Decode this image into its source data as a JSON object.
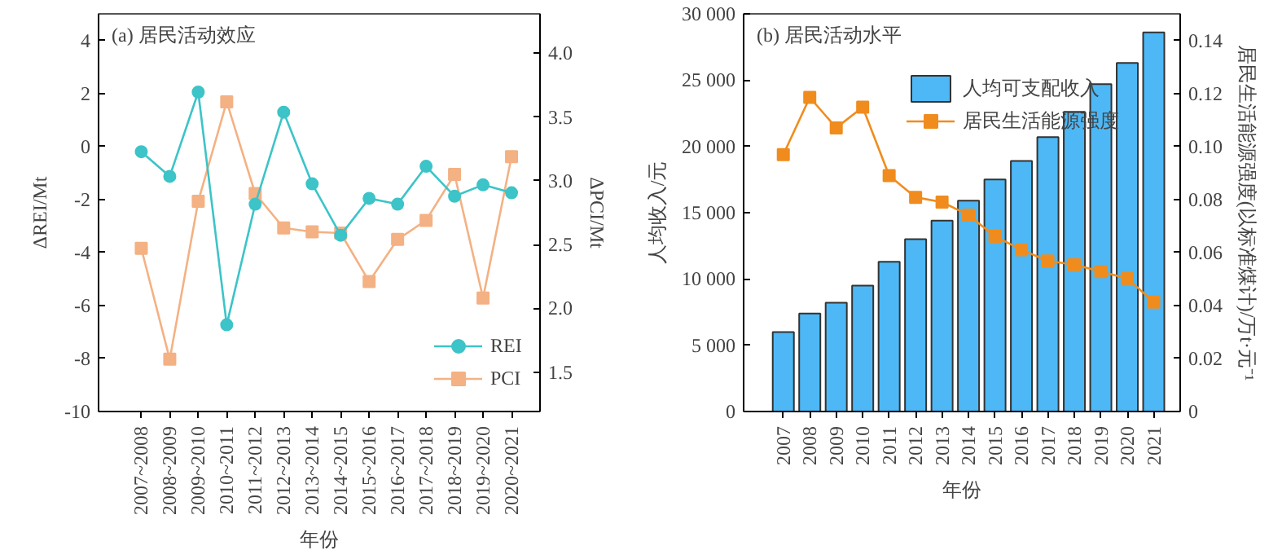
{
  "chart_data": [
    {
      "type": "line",
      "title": "(a) 居民活动效应",
      "xlabel": "年份",
      "ylabel": "ΔREI/Mt",
      "y2label": "ΔPCI/Mt",
      "categories": [
        "2007~2008",
        "2008~2009",
        "2009~2010",
        "2010~2011",
        "2011~2012",
        "2012~2013",
        "2013~2014",
        "2014~2015",
        "2015~2016",
        "2016~2017",
        "2017~2018",
        "2018~2019",
        "2019~2020",
        "2020~2021"
      ],
      "series": [
        {
          "name": "REI",
          "color": "#3cc4c8",
          "marker": "circle",
          "values": [
            -0.2,
            -1.13,
            2.05,
            -6.73,
            -2.18,
            1.29,
            -1.41,
            -3.35,
            -1.96,
            -2.18,
            -0.75,
            -1.88,
            -1.45,
            -1.75
          ]
        },
        {
          "name": "PCI",
          "color": "#f4b183",
          "marker": "square",
          "axis": "y2",
          "values": [
            2.47,
            1.6,
            2.84,
            3.62,
            2.9,
            2.63,
            2.6,
            2.59,
            2.21,
            2.54,
            2.69,
            3.05,
            2.08,
            3.19
          ]
        }
      ],
      "ylim": [
        -10,
        5
      ],
      "yticks": [
        -10,
        -8,
        -6,
        -4,
        -2,
        0,
        2,
        4
      ],
      "y2lim": [
        1.19,
        4.31
      ],
      "y2ticks": [
        1.5,
        {
          "value": 2,
          "label": "2.0"
        },
        2.5,
        {
          "value": 3,
          "label": "3.0"
        },
        3.5,
        {
          "value": 4,
          "label": "4.0"
        }
      ],
      "legend": "bottom right",
      "grid": false
    },
    {
      "type": "bar",
      "title": "(b) 居民活动水平",
      "xlabel": "年份",
      "ylabel": "人均收入/元",
      "y2label": "居民生活能源强度(以标准煤计)/万t·元⁻¹",
      "categories": [
        "2007",
        "2008",
        "2009",
        "2010",
        "2011",
        "2012",
        "2013",
        "2014",
        "2015",
        "2016",
        "2017",
        "2018",
        "2019",
        "2020",
        "2021"
      ],
      "series": [
        {
          "name": "人均可支配收入",
          "type": "bar",
          "color": "#4db8f5",
          "values": [
            6000,
            7400,
            8200,
            9500,
            11300,
            13000,
            14400,
            15900,
            17500,
            18900,
            20700,
            22600,
            24700,
            26300,
            28600
          ]
        },
        {
          "name": "居民生活能源强度",
          "type": "line",
          "color": "#f08c1e",
          "marker": "square",
          "axis": "y2",
          "values": [
            0.0969,
            0.1185,
            0.107,
            0.1148,
            0.089,
            0.0808,
            0.079,
            0.0741,
            0.0661,
            0.061,
            0.0568,
            0.0554,
            0.0528,
            0.0502,
            0.0413
          ]
        }
      ],
      "ylim": [
        0,
        30000
      ],
      "yticks": [
        0,
        {
          "value": 5000,
          "label": "5 000"
        },
        {
          "value": 10000,
          "label": "10 000"
        },
        {
          "value": 15000,
          "label": "15 000"
        },
        {
          "value": 20000,
          "label": "20 000"
        },
        {
          "value": 25000,
          "label": "25 000"
        },
        {
          "value": 30000,
          "label": "30 000"
        }
      ],
      "y2lim": [
        0,
        0.15
      ],
      "y2ticks": [
        0,
        0.02,
        0.04,
        0.06,
        0.08,
        {
          "value": 0.1,
          "label": "0.10"
        },
        0.12,
        0.14
      ],
      "legend": "top",
      "grid": false
    }
  ]
}
